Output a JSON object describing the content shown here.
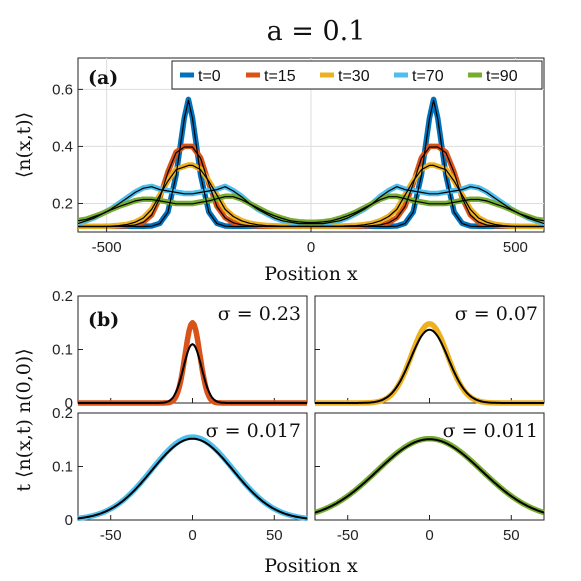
{
  "figure": {
    "title": "a = 0.1"
  },
  "chart_data": [
    {
      "panel": "(a)",
      "type": "line",
      "ylabel": "⟨n(x,t)⟩",
      "xlabel": "Position x",
      "xlim": [
        -570,
        570
      ],
      "ylim": [
        0.1,
        0.71
      ],
      "xticks": [
        -500,
        0,
        500
      ],
      "yticks": [
        0.2,
        0.4,
        0.6
      ],
      "grid": true,
      "legend_position": "top",
      "x": [
        -570,
        -550,
        -530,
        -510,
        -490,
        -470,
        -450,
        -430,
        -410,
        -390,
        -370,
        -350,
        -330,
        -310,
        -300,
        -290,
        -270,
        -250,
        -230,
        -210,
        -190,
        -170,
        -150,
        -130,
        -110,
        -90,
        -70,
        -50,
        -30,
        -10,
        0,
        10,
        30,
        50,
        70,
        90,
        110,
        130,
        150,
        170,
        190,
        210,
        230,
        250,
        270,
        290,
        300,
        310,
        330,
        350,
        370,
        390,
        410,
        430,
        450,
        470,
        490,
        510,
        530,
        550,
        570
      ],
      "series": [
        {
          "name": "t=0",
          "color": "#0072BD",
          "values": [
            0.12,
            0.12,
            0.12,
            0.12,
            0.12,
            0.12,
            0.12,
            0.12,
            0.12,
            0.121,
            0.13,
            0.17,
            0.3,
            0.5,
            0.565,
            0.5,
            0.3,
            0.17,
            0.13,
            0.121,
            0.12,
            0.12,
            0.12,
            0.12,
            0.12,
            0.12,
            0.12,
            0.12,
            0.12,
            0.12,
            0.12,
            0.12,
            0.12,
            0.12,
            0.12,
            0.12,
            0.12,
            0.12,
            0.12,
            0.12,
            0.12,
            0.121,
            0.13,
            0.17,
            0.3,
            0.5,
            0.565,
            0.5,
            0.3,
            0.17,
            0.13,
            0.121,
            0.12,
            0.12,
            0.12,
            0.12,
            0.12,
            0.12,
            0.12,
            0.12,
            0.12
          ]
        },
        {
          "name": "t=15",
          "color": "#D95319",
          "values": [
            0.12,
            0.12,
            0.12,
            0.12,
            0.12,
            0.121,
            0.122,
            0.125,
            0.135,
            0.16,
            0.22,
            0.31,
            0.38,
            0.4,
            0.4,
            0.4,
            0.36,
            0.27,
            0.19,
            0.15,
            0.133,
            0.126,
            0.123,
            0.121,
            0.12,
            0.12,
            0.12,
            0.12,
            0.12,
            0.12,
            0.12,
            0.12,
            0.12,
            0.12,
            0.12,
            0.12,
            0.12,
            0.121,
            0.123,
            0.126,
            0.133,
            0.15,
            0.19,
            0.27,
            0.36,
            0.4,
            0.4,
            0.4,
            0.38,
            0.31,
            0.22,
            0.16,
            0.135,
            0.125,
            0.122,
            0.121,
            0.12,
            0.12,
            0.12,
            0.12,
            0.12
          ]
        },
        {
          "name": "t=30",
          "color": "#EDB120",
          "values": [
            0.12,
            0.12,
            0.12,
            0.12,
            0.121,
            0.123,
            0.127,
            0.135,
            0.15,
            0.18,
            0.23,
            0.28,
            0.32,
            0.33,
            0.335,
            0.335,
            0.32,
            0.28,
            0.23,
            0.18,
            0.155,
            0.14,
            0.131,
            0.126,
            0.123,
            0.122,
            0.121,
            0.121,
            0.121,
            0.121,
            0.121,
            0.121,
            0.121,
            0.121,
            0.121,
            0.122,
            0.123,
            0.126,
            0.131,
            0.14,
            0.155,
            0.18,
            0.23,
            0.28,
            0.32,
            0.335,
            0.335,
            0.33,
            0.32,
            0.28,
            0.23,
            0.18,
            0.15,
            0.135,
            0.127,
            0.123,
            0.121,
            0.12,
            0.12,
            0.12,
            0.12
          ]
        },
        {
          "name": "t=70",
          "color": "#4DBEEE",
          "values": [
            0.13,
            0.14,
            0.15,
            0.165,
            0.18,
            0.2,
            0.22,
            0.24,
            0.255,
            0.26,
            0.25,
            0.245,
            0.24,
            0.235,
            0.235,
            0.235,
            0.24,
            0.245,
            0.25,
            0.26,
            0.245,
            0.225,
            0.2,
            0.18,
            0.165,
            0.15,
            0.14,
            0.135,
            0.13,
            0.13,
            0.13,
            0.13,
            0.13,
            0.135,
            0.14,
            0.15,
            0.165,
            0.18,
            0.2,
            0.225,
            0.245,
            0.26,
            0.25,
            0.245,
            0.24,
            0.235,
            0.235,
            0.235,
            0.24,
            0.245,
            0.25,
            0.26,
            0.255,
            0.24,
            0.22,
            0.2,
            0.18,
            0.165,
            0.15,
            0.14,
            0.13
          ]
        },
        {
          "name": "t=90",
          "color": "#77AC30",
          "values": [
            0.14,
            0.145,
            0.155,
            0.165,
            0.178,
            0.19,
            0.2,
            0.21,
            0.215,
            0.215,
            0.21,
            0.205,
            0.2,
            0.2,
            0.2,
            0.2,
            0.205,
            0.21,
            0.218,
            0.225,
            0.225,
            0.215,
            0.2,
            0.185,
            0.17,
            0.158,
            0.148,
            0.14,
            0.136,
            0.134,
            0.134,
            0.134,
            0.136,
            0.14,
            0.148,
            0.158,
            0.17,
            0.185,
            0.2,
            0.215,
            0.225,
            0.225,
            0.218,
            0.21,
            0.205,
            0.2,
            0.2,
            0.2,
            0.2,
            0.205,
            0.21,
            0.215,
            0.215,
            0.21,
            0.2,
            0.19,
            0.178,
            0.165,
            0.155,
            0.145,
            0.14
          ]
        }
      ]
    },
    {
      "panel": "(b)",
      "type": "line",
      "ylabel": "t ⟨n(x,t) n(0,0)⟩",
      "xlabel": "Position x",
      "xlim": [
        -70,
        70
      ],
      "ylim": [
        0,
        0.2
      ],
      "xticks": [
        -50,
        0,
        50
      ],
      "yticks": [
        0,
        0.1,
        0.2
      ],
      "subplots": [
        {
          "sigma_label": "σ = 0.23",
          "color": "#D95319",
          "data_peak": 0.15,
          "data_width": 4.5,
          "fit_peak": 0.11,
          "fit_width": 5.5
        },
        {
          "sigma_label": "σ = 0.07",
          "color": "#EDB120",
          "data_peak": 0.148,
          "data_width": 11,
          "fit_peak": 0.137,
          "fit_width": 11.5
        },
        {
          "sigma_label": "σ = 0.017",
          "color": "#4DBEEE",
          "data_peak": 0.155,
          "data_width": 25,
          "fit_peak": 0.152,
          "fit_width": 25
        },
        {
          "sigma_label": "σ = 0.011",
          "color": "#77AC30",
          "data_peak": 0.152,
          "data_width": 32,
          "fit_peak": 0.151,
          "fit_width": 32
        }
      ]
    }
  ]
}
